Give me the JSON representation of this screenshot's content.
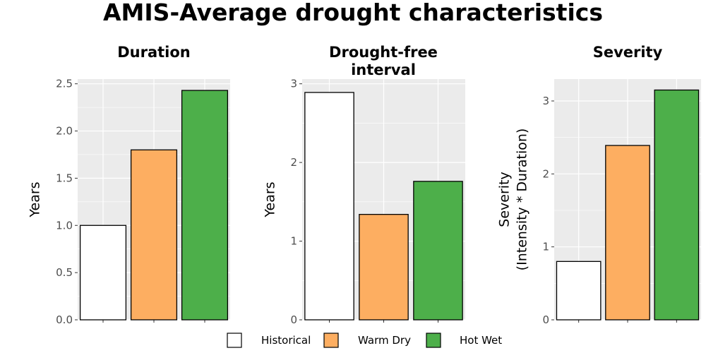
{
  "title": "AMIS-Average drought characteristics",
  "colors": {
    "Historical": "#ffffff",
    "Warm Dry": "#fdae61",
    "Hot Wet": "#4daf4a",
    "panel_background": "#ebebeb",
    "gridline": "#ffffff",
    "bar_outline": "#000000"
  },
  "legend": {
    "position": "bottom",
    "items": [
      "Historical",
      "Warm Dry",
      "Hot Wet"
    ]
  },
  "chart_data": [
    {
      "type": "bar",
      "title_lines": [
        "Duration"
      ],
      "ylabel_lines": [
        "Years"
      ],
      "categories": [
        "Historical",
        "Warm Dry",
        "Hot Wet"
      ],
      "values": [
        1.0,
        1.8,
        2.43
      ],
      "ylim": [
        0,
        2.55
      ],
      "yticks": [
        0,
        0.5,
        1.0,
        1.5,
        2.0,
        2.5
      ],
      "ytick_labels": [
        "0.0",
        "0.5",
        "1.0",
        "1.5",
        "2.0",
        "2.5"
      ],
      "grid": true
    },
    {
      "type": "bar",
      "title_lines": [
        "Drought-free",
        "interval"
      ],
      "ylabel_lines": [
        "Years"
      ],
      "categories": [
        "Historical",
        "Warm Dry",
        "Hot Wet"
      ],
      "values": [
        2.89,
        1.34,
        1.76
      ],
      "ylim": [
        0,
        3.06
      ],
      "yticks": [
        0,
        1,
        2,
        3
      ],
      "ytick_labels": [
        "0",
        "1",
        "2",
        "3"
      ],
      "grid": true
    },
    {
      "type": "bar",
      "title_lines": [
        "Severity"
      ],
      "ylabel_lines": [
        "Severity",
        "(Intensity * Duration)"
      ],
      "categories": [
        "Historical",
        "Warm Dry",
        "Hot Wet"
      ],
      "values": [
        0.8,
        2.39,
        3.15
      ],
      "ylim": [
        0,
        3.3
      ],
      "yticks": [
        0,
        1,
        2,
        3
      ],
      "ytick_labels": [
        "0",
        "1",
        "2",
        "3"
      ],
      "grid": true
    }
  ]
}
